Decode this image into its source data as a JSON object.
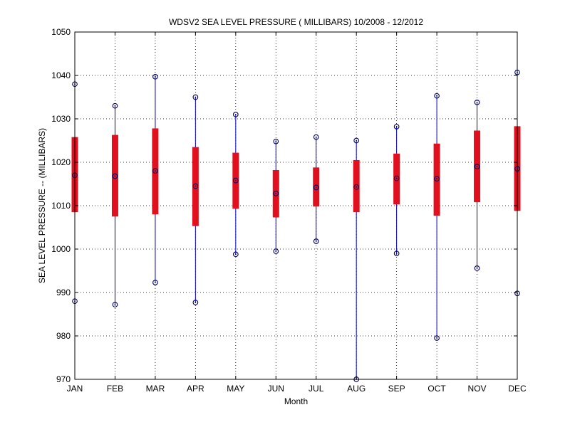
{
  "chart_data": {
    "type": "boxplot",
    "title": "WDSV2  SEA LEVEL PRESSURE ( MILLIBARS) 10/2008 - 12/2012",
    "xlabel": "Month",
    "ylabel": "SEA LEVEL PRESSURE -- (MILLIBARS)",
    "ylim": [
      970,
      1050
    ],
    "yticks": [
      970,
      980,
      990,
      1000,
      1010,
      1020,
      1030,
      1040,
      1050
    ],
    "grid": true,
    "categories": [
      "JAN",
      "FEB",
      "MAR",
      "APR",
      "MAY",
      "JUN",
      "JUL",
      "AUG",
      "SEP",
      "OCT",
      "NOV",
      "DEC"
    ],
    "series": [
      {
        "min": 988.0,
        "q1": 1008.5,
        "median": 1017.0,
        "q3": 1025.8,
        "max": 1038.0
      },
      {
        "min": 987.2,
        "q1": 1007.5,
        "median": 1016.8,
        "q3": 1026.3,
        "max": 1033.0
      },
      {
        "min": 992.3,
        "q1": 1008.0,
        "median": 1018.0,
        "q3": 1027.8,
        "max": 1039.7
      },
      {
        "min": 987.7,
        "q1": 1005.3,
        "median": 1014.5,
        "q3": 1023.5,
        "max": 1035.0
      },
      {
        "min": 998.8,
        "q1": 1009.3,
        "median": 1015.8,
        "q3": 1022.2,
        "max": 1031.0
      },
      {
        "min": 999.5,
        "q1": 1007.3,
        "median": 1012.8,
        "q3": 1018.2,
        "max": 1024.8
      },
      {
        "min": 1001.8,
        "q1": 1009.8,
        "median": 1014.2,
        "q3": 1018.8,
        "max": 1025.8
      },
      {
        "min": 970.0,
        "q1": 1008.5,
        "median": 1014.3,
        "q3": 1020.5,
        "max": 1025.0
      },
      {
        "min": 999.0,
        "q1": 1010.3,
        "median": 1016.3,
        "q3": 1022.0,
        "max": 1028.2
      },
      {
        "min": 979.5,
        "q1": 1007.7,
        "median": 1016.2,
        "q3": 1024.3,
        "max": 1035.3
      },
      {
        "min": 995.6,
        "q1": 1010.8,
        "median": 1019.0,
        "q3": 1027.3,
        "max": 1033.8
      },
      {
        "min": 989.8,
        "q1": 1008.8,
        "median": 1018.5,
        "q3": 1028.3,
        "max": 1040.7
      }
    ],
    "colors": {
      "whisker": "#0000cc",
      "box": "#e0101e",
      "marker": "#000066"
    }
  }
}
